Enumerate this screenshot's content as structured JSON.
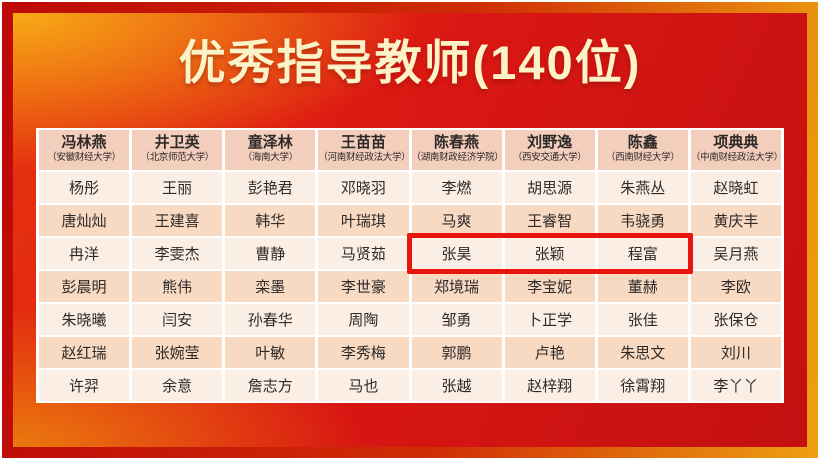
{
  "title": "优秀指导教师(140位)",
  "colors": {
    "frame_gradient_left": "#bd0909",
    "frame_gradient_right": "#eea011",
    "panel_red": "#dc1813",
    "panel_dark_red": "#c31010",
    "panel_gold": "#f8aa16",
    "panel_orange": "#eb7d0e",
    "title_text": "#fcf2c8",
    "header_bg": "#f3cebc",
    "row_light_bg": "#fbeee4",
    "row_dark_bg": "#f8d9c2",
    "cell_text": "#2e2a28",
    "highlight_border": "#e8140e"
  },
  "table": {
    "headers": [
      {
        "name": "冯林燕",
        "school": "（安徽财经大学）"
      },
      {
        "name": "井卫英",
        "school": "（北京师范大学）"
      },
      {
        "name": "童泽林",
        "school": "（海南大学）"
      },
      {
        "name": "王苗苗",
        "school": "（河南财经政法大学）"
      },
      {
        "name": "陈春燕",
        "school": "（湖南财政经济学院）"
      },
      {
        "name": "刘野逸",
        "school": "（西安交通大学）"
      },
      {
        "name": "陈鑫",
        "school": "（西南财经大学）"
      },
      {
        "name": "项典典",
        "school": "（中南财经政法大学）"
      }
    ],
    "rows": [
      [
        "杨彤",
        "王丽",
        "彭艳君",
        "邓晓羽",
        "李燃",
        "胡思源",
        "朱燕丛",
        "赵晓虹"
      ],
      [
        "唐灿灿",
        "王建喜",
        "韩华",
        "叶瑞琪",
        "马爽",
        "王睿智",
        "韦骁勇",
        "黄庆丰"
      ],
      [
        "冉洋",
        "李雯杰",
        "曹静",
        "马贤茹",
        "张昊",
        "张颖",
        "程富",
        "吴月燕"
      ],
      [
        "彭晨明",
        "熊伟",
        "栾墨",
        "李世豪",
        "郑境瑞",
        "李宝妮",
        "董赫",
        "李欧"
      ],
      [
        "朱晓曦",
        "闫安",
        "孙春华",
        "周陶",
        "邹勇",
        "卜正学",
        "张佳",
        "张保仓"
      ],
      [
        "赵红瑞",
        "张婉莹",
        "叶敏",
        "李秀梅",
        "郭鹏",
        "卢艳",
        "朱思文",
        "刘川"
      ],
      [
        "许羿",
        "余意",
        "詹志方",
        "马也",
        "张越",
        "赵梓翔",
        "徐霄翔",
        "李丫丫"
      ]
    ],
    "highlight": {
      "row_index": 2,
      "col_start": 4,
      "col_end": 6
    }
  }
}
